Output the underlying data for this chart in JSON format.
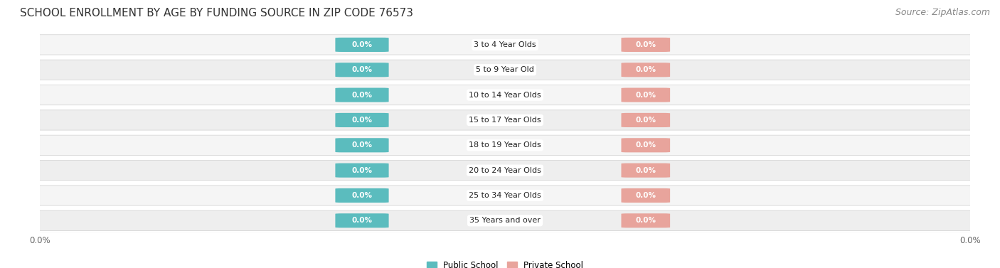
{
  "title": "SCHOOL ENROLLMENT BY AGE BY FUNDING SOURCE IN ZIP CODE 76573",
  "source": "Source: ZipAtlas.com",
  "categories": [
    "3 to 4 Year Olds",
    "5 to 9 Year Old",
    "10 to 14 Year Olds",
    "15 to 17 Year Olds",
    "18 to 19 Year Olds",
    "20 to 24 Year Olds",
    "25 to 34 Year Olds",
    "35 Years and over"
  ],
  "public_values": [
    0.0,
    0.0,
    0.0,
    0.0,
    0.0,
    0.0,
    0.0,
    0.0
  ],
  "private_values": [
    0.0,
    0.0,
    0.0,
    0.0,
    0.0,
    0.0,
    0.0,
    0.0
  ],
  "public_color": "#5bbcbe",
  "private_color": "#e8a49c",
  "row_bg_light": "#f2f2f2",
  "row_bg_dark": "#e6e6e6",
  "pill_bg": "#e8e8e8",
  "label_color": "#222222",
  "title_fontsize": 11,
  "source_fontsize": 9,
  "legend_public": "Public School",
  "legend_private": "Private School",
  "background_color": "#ffffff",
  "bar_pill_color": "#e0e0e0",
  "bar_pill_border": "#cccccc"
}
